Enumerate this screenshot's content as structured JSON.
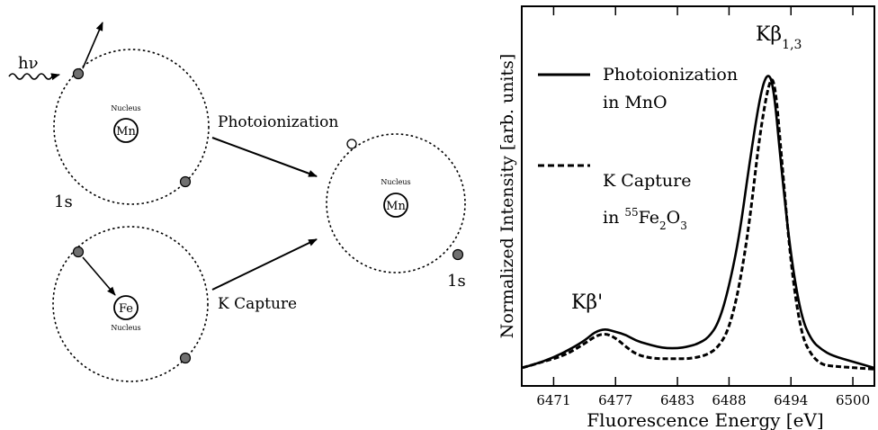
{
  "diagram": {
    "photon_label": "hν",
    "nucleus_word": "Nucleus",
    "atoms": {
      "mn_initial": {
        "element": "Mn",
        "shell_label": "1s"
      },
      "fe_initial": {
        "element": "Fe"
      },
      "mn_final": {
        "element": "Mn",
        "shell_label": "1s"
      }
    },
    "process_photoionization": "Photoionization",
    "process_k_capture": "K Capture"
  },
  "chart_data": {
    "type": "line",
    "xlabel": "Fluorescence Energy [eV]",
    "ylabel": "Normalized Intensity [arb. units]",
    "xlim": [
      6468,
      6502
    ],
    "ylim": [
      0,
      1.05
    ],
    "xticks": [
      6471,
      6477,
      6483,
      6488,
      6494,
      6500
    ],
    "yticks_labeled": false,
    "grid": false,
    "legend_position": "upper-left",
    "series": [
      {
        "name": "Photoionization in MnO",
        "legend_line1": "Photoionization",
        "legend_line2": "in MnO",
        "style": "solid",
        "points": [
          [
            6468,
            0.01
          ],
          [
            6470,
            0.03
          ],
          [
            6472,
            0.06
          ],
          [
            6474,
            0.1
          ],
          [
            6475,
            0.13
          ],
          [
            6476,
            0.14
          ],
          [
            6477,
            0.13
          ],
          [
            6478,
            0.12
          ],
          [
            6479,
            0.1
          ],
          [
            6480,
            0.09
          ],
          [
            6481,
            0.08
          ],
          [
            6482,
            0.075
          ],
          [
            6483,
            0.075
          ],
          [
            6484,
            0.08
          ],
          [
            6485,
            0.09
          ],
          [
            6486,
            0.11
          ],
          [
            6487,
            0.16
          ],
          [
            6488,
            0.28
          ],
          [
            6489,
            0.45
          ],
          [
            6490,
            0.7
          ],
          [
            6491,
            0.92
          ],
          [
            6491.7,
            1.0
          ],
          [
            6492.3,
            0.96
          ],
          [
            6493,
            0.7
          ],
          [
            6494,
            0.38
          ],
          [
            6495,
            0.18
          ],
          [
            6496,
            0.1
          ],
          [
            6497,
            0.07
          ],
          [
            6498,
            0.05
          ],
          [
            6500,
            0.03
          ],
          [
            6502,
            0.01
          ]
        ]
      },
      {
        "name": "K Capture in 55Fe2O3",
        "legend_line1": "K Capture",
        "legend_line2_prefix": "in ",
        "legend_line2_isotope": "55",
        "legend_line2_fe": "Fe",
        "legend_line2_sub1": "2",
        "legend_line2_o": "O",
        "legend_line2_sub2": "3",
        "style": "dashed",
        "points": [
          [
            6468,
            0.01
          ],
          [
            6470,
            0.03
          ],
          [
            6472,
            0.05
          ],
          [
            6474,
            0.09
          ],
          [
            6475,
            0.115
          ],
          [
            6476,
            0.125
          ],
          [
            6477,
            0.11
          ],
          [
            6478,
            0.08
          ],
          [
            6479,
            0.055
          ],
          [
            6480,
            0.045
          ],
          [
            6481,
            0.04
          ],
          [
            6482,
            0.04
          ],
          [
            6483,
            0.04
          ],
          [
            6484,
            0.04
          ],
          [
            6485,
            0.045
          ],
          [
            6486,
            0.055
          ],
          [
            6487,
            0.08
          ],
          [
            6488,
            0.14
          ],
          [
            6489,
            0.28
          ],
          [
            6490,
            0.5
          ],
          [
            6491,
            0.8
          ],
          [
            6492,
            0.99
          ],
          [
            6492.5,
            0.95
          ],
          [
            6493,
            0.75
          ],
          [
            6494,
            0.35
          ],
          [
            6495,
            0.12
          ],
          [
            6496,
            0.05
          ],
          [
            6497,
            0.02
          ],
          [
            6498,
            0.015
          ],
          [
            6500,
            0.01
          ],
          [
            6502,
            0.005
          ]
        ]
      }
    ],
    "annotations": {
      "kbeta_prime": "Kβ'",
      "kbeta13_main": "Kβ",
      "kbeta13_sub": "1,3"
    }
  }
}
